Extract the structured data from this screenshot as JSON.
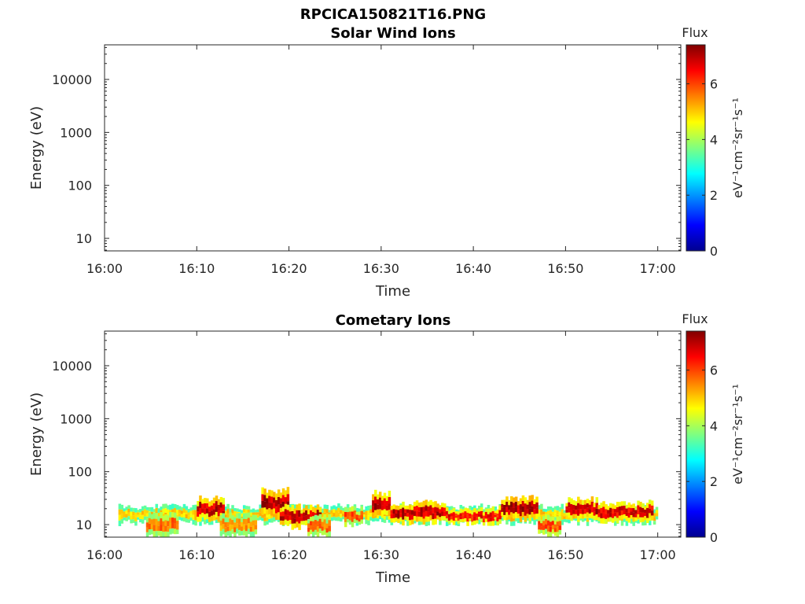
{
  "figure_title": "RPCICA150821T16.PNG",
  "chart_data": [
    {
      "type": "heatmap",
      "title": "Solar Wind Ions",
      "xlabel": "Time",
      "ylabel": "Energy (eV)",
      "yscale": "log",
      "xticks": [
        "16:00",
        "16:10",
        "16:20",
        "16:30",
        "16:40",
        "16:50",
        "17:00"
      ],
      "yticks": [
        "10",
        "100",
        "1000",
        "10000"
      ],
      "colorbar": {
        "label": "Flux",
        "unit": "eV⁻¹cm⁻²sr⁻¹s⁻¹",
        "ticks": [
          "0",
          "2",
          "4",
          "6"
        ],
        "range": [
          0,
          7.4
        ],
        "colormap": "jet"
      },
      "blobs": []
    },
    {
      "type": "heatmap",
      "title": "Cometary Ions",
      "xlabel": "Time",
      "ylabel": "Energy (eV)",
      "yscale": "log",
      "xticks": [
        "16:00",
        "16:10",
        "16:20",
        "16:30",
        "16:40",
        "16:50",
        "17:00"
      ],
      "yticks": [
        "10",
        "100",
        "1000",
        "10000"
      ],
      "colorbar": {
        "label": "Flux",
        "unit": "eV⁻¹cm⁻²sr⁻¹s⁻¹",
        "ticks": [
          "0",
          "2",
          "4",
          "6"
        ],
        "range": [
          0,
          7.4
        ],
        "colormap": "jet"
      },
      "blobs": [
        {
          "t0": 1.5,
          "t1": 60.0,
          "e_lo": 11,
          "e_hi": 22,
          "flux": 5.0
        },
        {
          "t0": 4.5,
          "t1": 8.0,
          "e_lo": 6,
          "e_hi": 16,
          "flux": 5.8
        },
        {
          "t0": 10.0,
          "t1": 13.0,
          "e_lo": 12,
          "e_hi": 32,
          "flux": 7.0
        },
        {
          "t0": 12.5,
          "t1": 16.5,
          "e_lo": 6,
          "e_hi": 15,
          "flux": 5.5
        },
        {
          "t0": 17.0,
          "t1": 20.0,
          "e_lo": 14,
          "e_hi": 45,
          "flux": 7.2
        },
        {
          "t0": 19.0,
          "t1": 23.5,
          "e_lo": 9,
          "e_hi": 22,
          "flux": 7.0
        },
        {
          "t0": 22.0,
          "t1": 24.5,
          "e_lo": 6,
          "e_hi": 14,
          "flux": 5.8
        },
        {
          "t0": 26.0,
          "t1": 28.0,
          "e_lo": 10,
          "e_hi": 20,
          "flux": 6.0
        },
        {
          "t0": 29.0,
          "t1": 31.0,
          "e_lo": 14,
          "e_hi": 40,
          "flux": 7.1
        },
        {
          "t0": 31.0,
          "t1": 37.0,
          "e_lo": 11,
          "e_hi": 26,
          "flux": 7.0
        },
        {
          "t0": 37.0,
          "t1": 43.0,
          "e_lo": 11,
          "e_hi": 20,
          "flux": 6.6
        },
        {
          "t0": 43.0,
          "t1": 47.0,
          "e_lo": 13,
          "e_hi": 32,
          "flux": 7.1
        },
        {
          "t0": 47.0,
          "t1": 49.5,
          "e_lo": 6,
          "e_hi": 14,
          "flux": 6.0
        },
        {
          "t0": 50.0,
          "t1": 53.5,
          "e_lo": 13,
          "e_hi": 30,
          "flux": 7.0
        },
        {
          "t0": 53.5,
          "t1": 59.5,
          "e_lo": 12,
          "e_hi": 26,
          "flux": 6.8
        }
      ]
    }
  ]
}
